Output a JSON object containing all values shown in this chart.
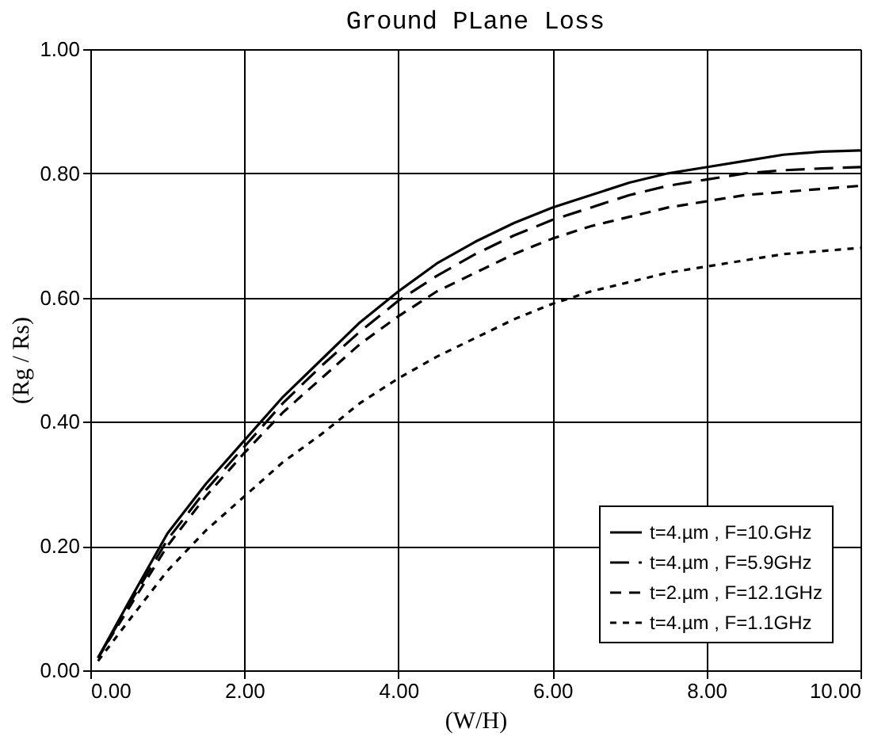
{
  "chart_data": {
    "type": "line",
    "title": "Ground PLane Loss",
    "xlabel": "(W/H)",
    "ylabel": "(Rg / Rs)",
    "x": [
      0.1,
      0.5,
      1,
      1.5,
      2,
      2.5,
      3,
      3.5,
      4,
      4.5,
      5,
      5.5,
      6,
      6.5,
      7,
      7.5,
      8,
      8.5,
      9,
      9.5,
      10
    ],
    "series": [
      {
        "name": "t=4.µm , F=10.GHz",
        "color": "#000000",
        "line_style": "solid",
        "values": [
          0.02,
          0.11,
          0.22,
          0.3,
          0.37,
          0.44,
          0.5,
          0.56,
          0.61,
          0.655,
          0.69,
          0.72,
          0.745,
          0.765,
          0.785,
          0.8,
          0.81,
          0.82,
          0.83,
          0.835,
          0.837
        ]
      },
      {
        "name": "t=4.µm , F=5.9GHz",
        "color": "#000000",
        "line_style": "dashed",
        "values": [
          0.02,
          0.105,
          0.21,
          0.29,
          0.36,
          0.43,
          0.49,
          0.545,
          0.595,
          0.635,
          0.67,
          0.7,
          0.725,
          0.745,
          0.765,
          0.78,
          0.79,
          0.8,
          0.805,
          0.808,
          0.81
        ]
      },
      {
        "name": "t=2.µm , F=12.1GHz",
        "color": "#000000",
        "line_style": "dashed",
        "values": [
          0.02,
          0.1,
          0.2,
          0.28,
          0.35,
          0.415,
          0.47,
          0.525,
          0.57,
          0.61,
          0.64,
          0.67,
          0.695,
          0.715,
          0.73,
          0.745,
          0.755,
          0.765,
          0.77,
          0.775,
          0.78
        ]
      },
      {
        "name": "t=4.µm , F=1.1GHz",
        "color": "#000000",
        "line_style": "dotted",
        "values": [
          0.015,
          0.08,
          0.16,
          0.225,
          0.28,
          0.335,
          0.38,
          0.43,
          0.47,
          0.505,
          0.535,
          0.565,
          0.59,
          0.61,
          0.625,
          0.64,
          0.65,
          0.66,
          0.67,
          0.675,
          0.68
        ]
      }
    ],
    "xlim": [
      0,
      10
    ],
    "xticks": [
      {
        "value": 0,
        "label": "0.00"
      },
      {
        "value": 2,
        "label": "2.00"
      },
      {
        "value": 4,
        "label": "4.00"
      },
      {
        "value": 6,
        "label": "6.00"
      },
      {
        "value": 8,
        "label": "8.00"
      },
      {
        "value": 10,
        "label": "10.00"
      }
    ],
    "ylim": [
      0,
      1
    ],
    "yticks": [
      {
        "value": 0,
        "label": "0.00"
      },
      {
        "value": 0.2,
        "label": "0.20"
      },
      {
        "value": 0.4,
        "label": "0.40"
      },
      {
        "value": 0.6,
        "label": "0.60"
      },
      {
        "value": 0.8,
        "label": "0.80"
      },
      {
        "value": 1,
        "label": "1.00"
      }
    ],
    "grid": true,
    "legend": "bottom right",
    "marker": "none"
  }
}
